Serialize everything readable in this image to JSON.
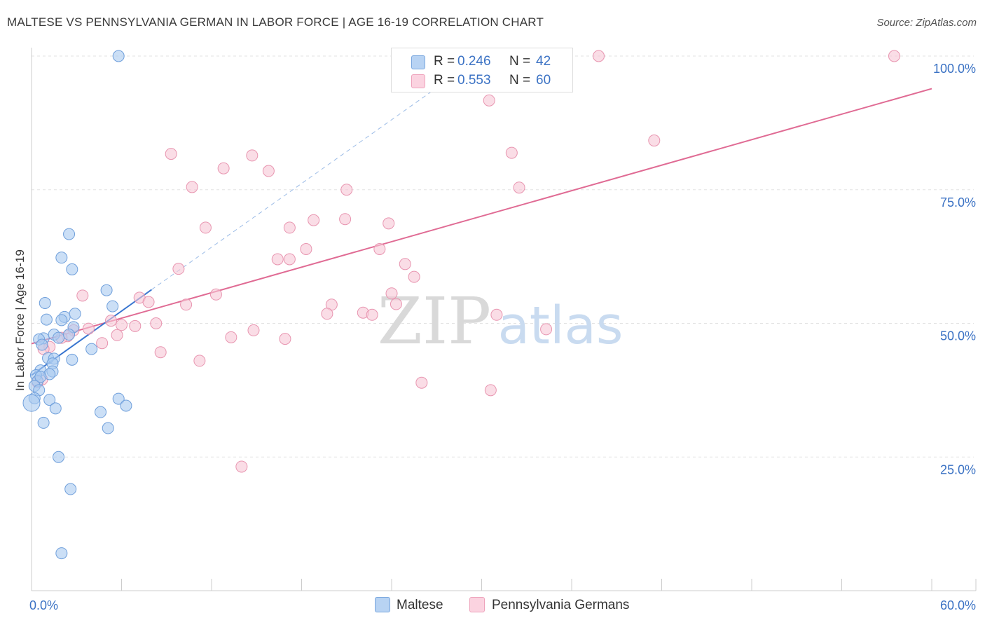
{
  "title": "MALTESE VS PENNSYLVANIA GERMAN IN LABOR FORCE | AGE 16-19 CORRELATION CHART",
  "source": "Source: ZipAtlas.com",
  "watermark": {
    "zip": "ZIP",
    "atlas": "atlas"
  },
  "legend": {
    "r_label": "R =",
    "n_label": "N =",
    "maltese": {
      "r": "0.246",
      "n": "42"
    },
    "penn": {
      "r": "0.553",
      "n": "60"
    }
  },
  "colors": {
    "maltese_fill": "#a9c9f0",
    "maltese_stroke": "#6f9fdb",
    "maltese_line": "#3a76d0",
    "penn_fill": "#f7c6d5",
    "penn_stroke": "#e895b0",
    "penn_line": "#e06b94",
    "axis_label": "#3b72c4",
    "grid": "#e3e3e3"
  },
  "chart_data": {
    "type": "scatter",
    "title": "MALTESE VS PENNSYLVANIA GERMAN IN LABOR FORCE | AGE 16-19 CORRELATION CHART",
    "xlabel": "",
    "ylabel": "In Labor Force | Age 16-19",
    "xlim": [
      0,
      60
    ],
    "ylim": [
      0,
      100
    ],
    "x_tick_labels": [
      "0.0%",
      "60.0%"
    ],
    "y_tick_labels": [
      "25.0%",
      "50.0%",
      "75.0%",
      "100.0%"
    ],
    "y_ticks": [
      25,
      50,
      75,
      100
    ],
    "grid": true,
    "legend_position": "top-center",
    "series": [
      {
        "name": "Maltese",
        "r": 0.246,
        "n": 42,
        "trend": {
          "x": [
            0,
            8
          ],
          "y": [
            40.3,
            56.3
          ]
        },
        "trend_extension": {
          "x": [
            8,
            30
          ],
          "y": [
            56.3,
            100
          ]
        },
        "points": [
          [
            5.8,
            100
          ],
          [
            2.5,
            66.7
          ],
          [
            2.0,
            62.3
          ],
          [
            2.7,
            60.1
          ],
          [
            5.0,
            56.2
          ],
          [
            0.9,
            53.8
          ],
          [
            5.4,
            53.2
          ],
          [
            2.9,
            51.8
          ],
          [
            2.2,
            51.2
          ],
          [
            1.0,
            50.7
          ],
          [
            2.0,
            50.6
          ],
          [
            2.8,
            49.3
          ],
          [
            1.5,
            47.9
          ],
          [
            0.8,
            47.2
          ],
          [
            0.5,
            47.0
          ],
          [
            1.8,
            47.3
          ],
          [
            2.5,
            47.9
          ],
          [
            4.0,
            45.2
          ],
          [
            0.7,
            46.0
          ],
          [
            1.1,
            43.5
          ],
          [
            1.5,
            43.4
          ],
          [
            2.7,
            43.2
          ],
          [
            1.4,
            42.5
          ],
          [
            1.4,
            41.0
          ],
          [
            0.6,
            41.2
          ],
          [
            0.3,
            40.3
          ],
          [
            1.2,
            40.5
          ],
          [
            0.4,
            39.2
          ],
          [
            0.6,
            40.0
          ],
          [
            0.2,
            38.3
          ],
          [
            0.5,
            37.5
          ],
          [
            0.2,
            36.0
          ],
          [
            1.2,
            35.7
          ],
          [
            5.8,
            35.9
          ],
          [
            6.3,
            34.6
          ],
          [
            1.6,
            34.1
          ],
          [
            4.6,
            33.4
          ],
          [
            0.8,
            31.4
          ],
          [
            5.1,
            30.4
          ],
          [
            1.8,
            25.0
          ],
          [
            2.6,
            19.0
          ],
          [
            2.0,
            7.0
          ]
        ]
      },
      {
        "name": "Pennsylvania Germans",
        "r": 0.553,
        "n": 60,
        "trend": {
          "x": [
            0,
            60
          ],
          "y": [
            46.2,
            93.9
          ]
        },
        "points": [
          [
            28.0,
            100
          ],
          [
            37.8,
            100
          ],
          [
            57.5,
            100
          ],
          [
            30.5,
            91.7
          ],
          [
            41.5,
            84.2
          ],
          [
            9.3,
            81.7
          ],
          [
            14.7,
            81.4
          ],
          [
            32.0,
            81.9
          ],
          [
            12.8,
            79.0
          ],
          [
            15.8,
            78.5
          ],
          [
            10.7,
            75.5
          ],
          [
            21.0,
            75.0
          ],
          [
            32.5,
            75.4
          ],
          [
            17.2,
            67.9
          ],
          [
            18.8,
            69.3
          ],
          [
            20.9,
            69.5
          ],
          [
            23.8,
            68.7
          ],
          [
            11.6,
            67.9
          ],
          [
            18.3,
            63.9
          ],
          [
            23.2,
            63.9
          ],
          [
            16.4,
            62.0
          ],
          [
            17.2,
            62.0
          ],
          [
            24.9,
            61.1
          ],
          [
            9.8,
            60.2
          ],
          [
            25.5,
            58.7
          ],
          [
            3.4,
            55.2
          ],
          [
            12.3,
            55.4
          ],
          [
            24.0,
            55.6
          ],
          [
            7.2,
            54.8
          ],
          [
            7.8,
            54.0
          ],
          [
            10.3,
            53.5
          ],
          [
            20.0,
            53.5
          ],
          [
            24.3,
            53.6
          ],
          [
            19.7,
            51.8
          ],
          [
            22.1,
            52.0
          ],
          [
            22.7,
            51.6
          ],
          [
            31.0,
            51.6
          ],
          [
            5.3,
            50.5
          ],
          [
            6.0,
            49.7
          ],
          [
            6.9,
            49.5
          ],
          [
            8.3,
            50.0
          ],
          [
            3.8,
            49.0
          ],
          [
            2.8,
            48.7
          ],
          [
            14.8,
            48.7
          ],
          [
            34.3,
            48.9
          ],
          [
            5.7,
            47.8
          ],
          [
            13.3,
            47.4
          ],
          [
            16.9,
            47.1
          ],
          [
            2.4,
            47.6
          ],
          [
            2.0,
            47.3
          ],
          [
            4.7,
            46.3
          ],
          [
            1.2,
            45.6
          ],
          [
            0.8,
            45.2
          ],
          [
            8.6,
            44.6
          ],
          [
            11.2,
            43.0
          ],
          [
            26.0,
            38.9
          ],
          [
            30.6,
            37.5
          ],
          [
            0.7,
            39.5
          ],
          [
            0.4,
            39.0
          ],
          [
            14.0,
            23.2
          ]
        ]
      }
    ]
  },
  "bottom_legend": {
    "maltese": "Maltese",
    "penn": "Pennsylvania Germans"
  }
}
